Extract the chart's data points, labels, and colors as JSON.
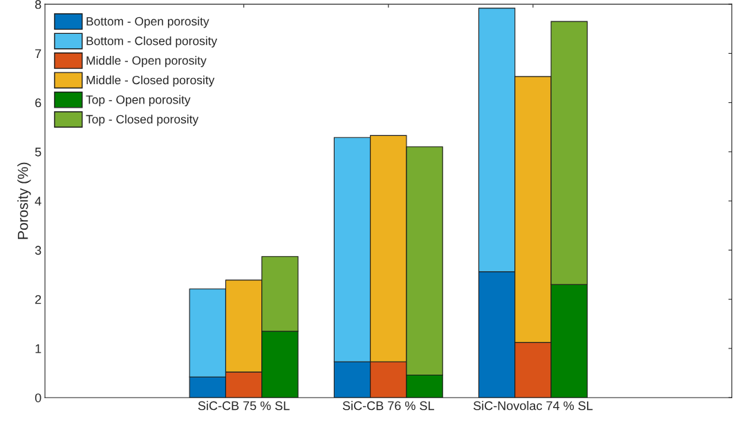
{
  "chart_data": {
    "type": "bar",
    "stacked": true,
    "ylabel": "Porosity (%)",
    "ylim": [
      0,
      8
    ],
    "yticks": [
      0,
      1,
      2,
      3,
      4,
      5,
      6,
      7,
      8
    ],
    "grid": false,
    "legend": "top left",
    "categories": [
      null,
      null,
      null,
      null,
      null,
      "SiC-CB 75 % SL",
      null,
      null,
      null,
      "SiC-CB 76 % SL",
      null,
      null,
      null,
      "SiC-Novolac 74 % SL",
      null,
      null,
      null,
      null,
      null
    ],
    "series": [
      {
        "name": "Bottom - Open porosity",
        "color": "#0072bd",
        "values": [
          null,
          null,
          null,
          null,
          0.42,
          null,
          null,
          null,
          0.73,
          null,
          null,
          null,
          2.56,
          null,
          null,
          null,
          null,
          null,
          null
        ]
      },
      {
        "name": "Bottom - Closed porosity",
        "color": "#4dbeee",
        "values": [
          null,
          null,
          null,
          null,
          1.79,
          null,
          null,
          null,
          4.56,
          null,
          null,
          null,
          5.36,
          null,
          null,
          null,
          null,
          null,
          null
        ]
      },
      {
        "name": "Middle - Open porosity",
        "color": "#d95319",
        "values": [
          null,
          null,
          null,
          null,
          null,
          0.52,
          null,
          null,
          null,
          0.73,
          null,
          null,
          null,
          1.12,
          null,
          null,
          null,
          null,
          null
        ]
      },
      {
        "name": "Middle - Closed porosity",
        "color": "#edb120",
        "values": [
          null,
          null,
          null,
          null,
          null,
          1.87,
          null,
          null,
          null,
          4.6,
          null,
          null,
          null,
          5.41,
          null,
          null,
          null,
          null,
          null
        ]
      },
      {
        "name": "Top - Open porosity",
        "color": "#008000",
        "values": [
          null,
          null,
          null,
          null,
          null,
          null,
          1.35,
          null,
          null,
          null,
          0.46,
          null,
          null,
          null,
          2.3,
          null,
          null,
          null,
          null
        ]
      },
      {
        "name": "Top - Closed porosity",
        "color": "#77ac30",
        "values": [
          null,
          null,
          null,
          null,
          null,
          null,
          1.52,
          null,
          null,
          null,
          4.64,
          null,
          null,
          null,
          5.35,
          null,
          null,
          null,
          null
        ]
      }
    ]
  }
}
